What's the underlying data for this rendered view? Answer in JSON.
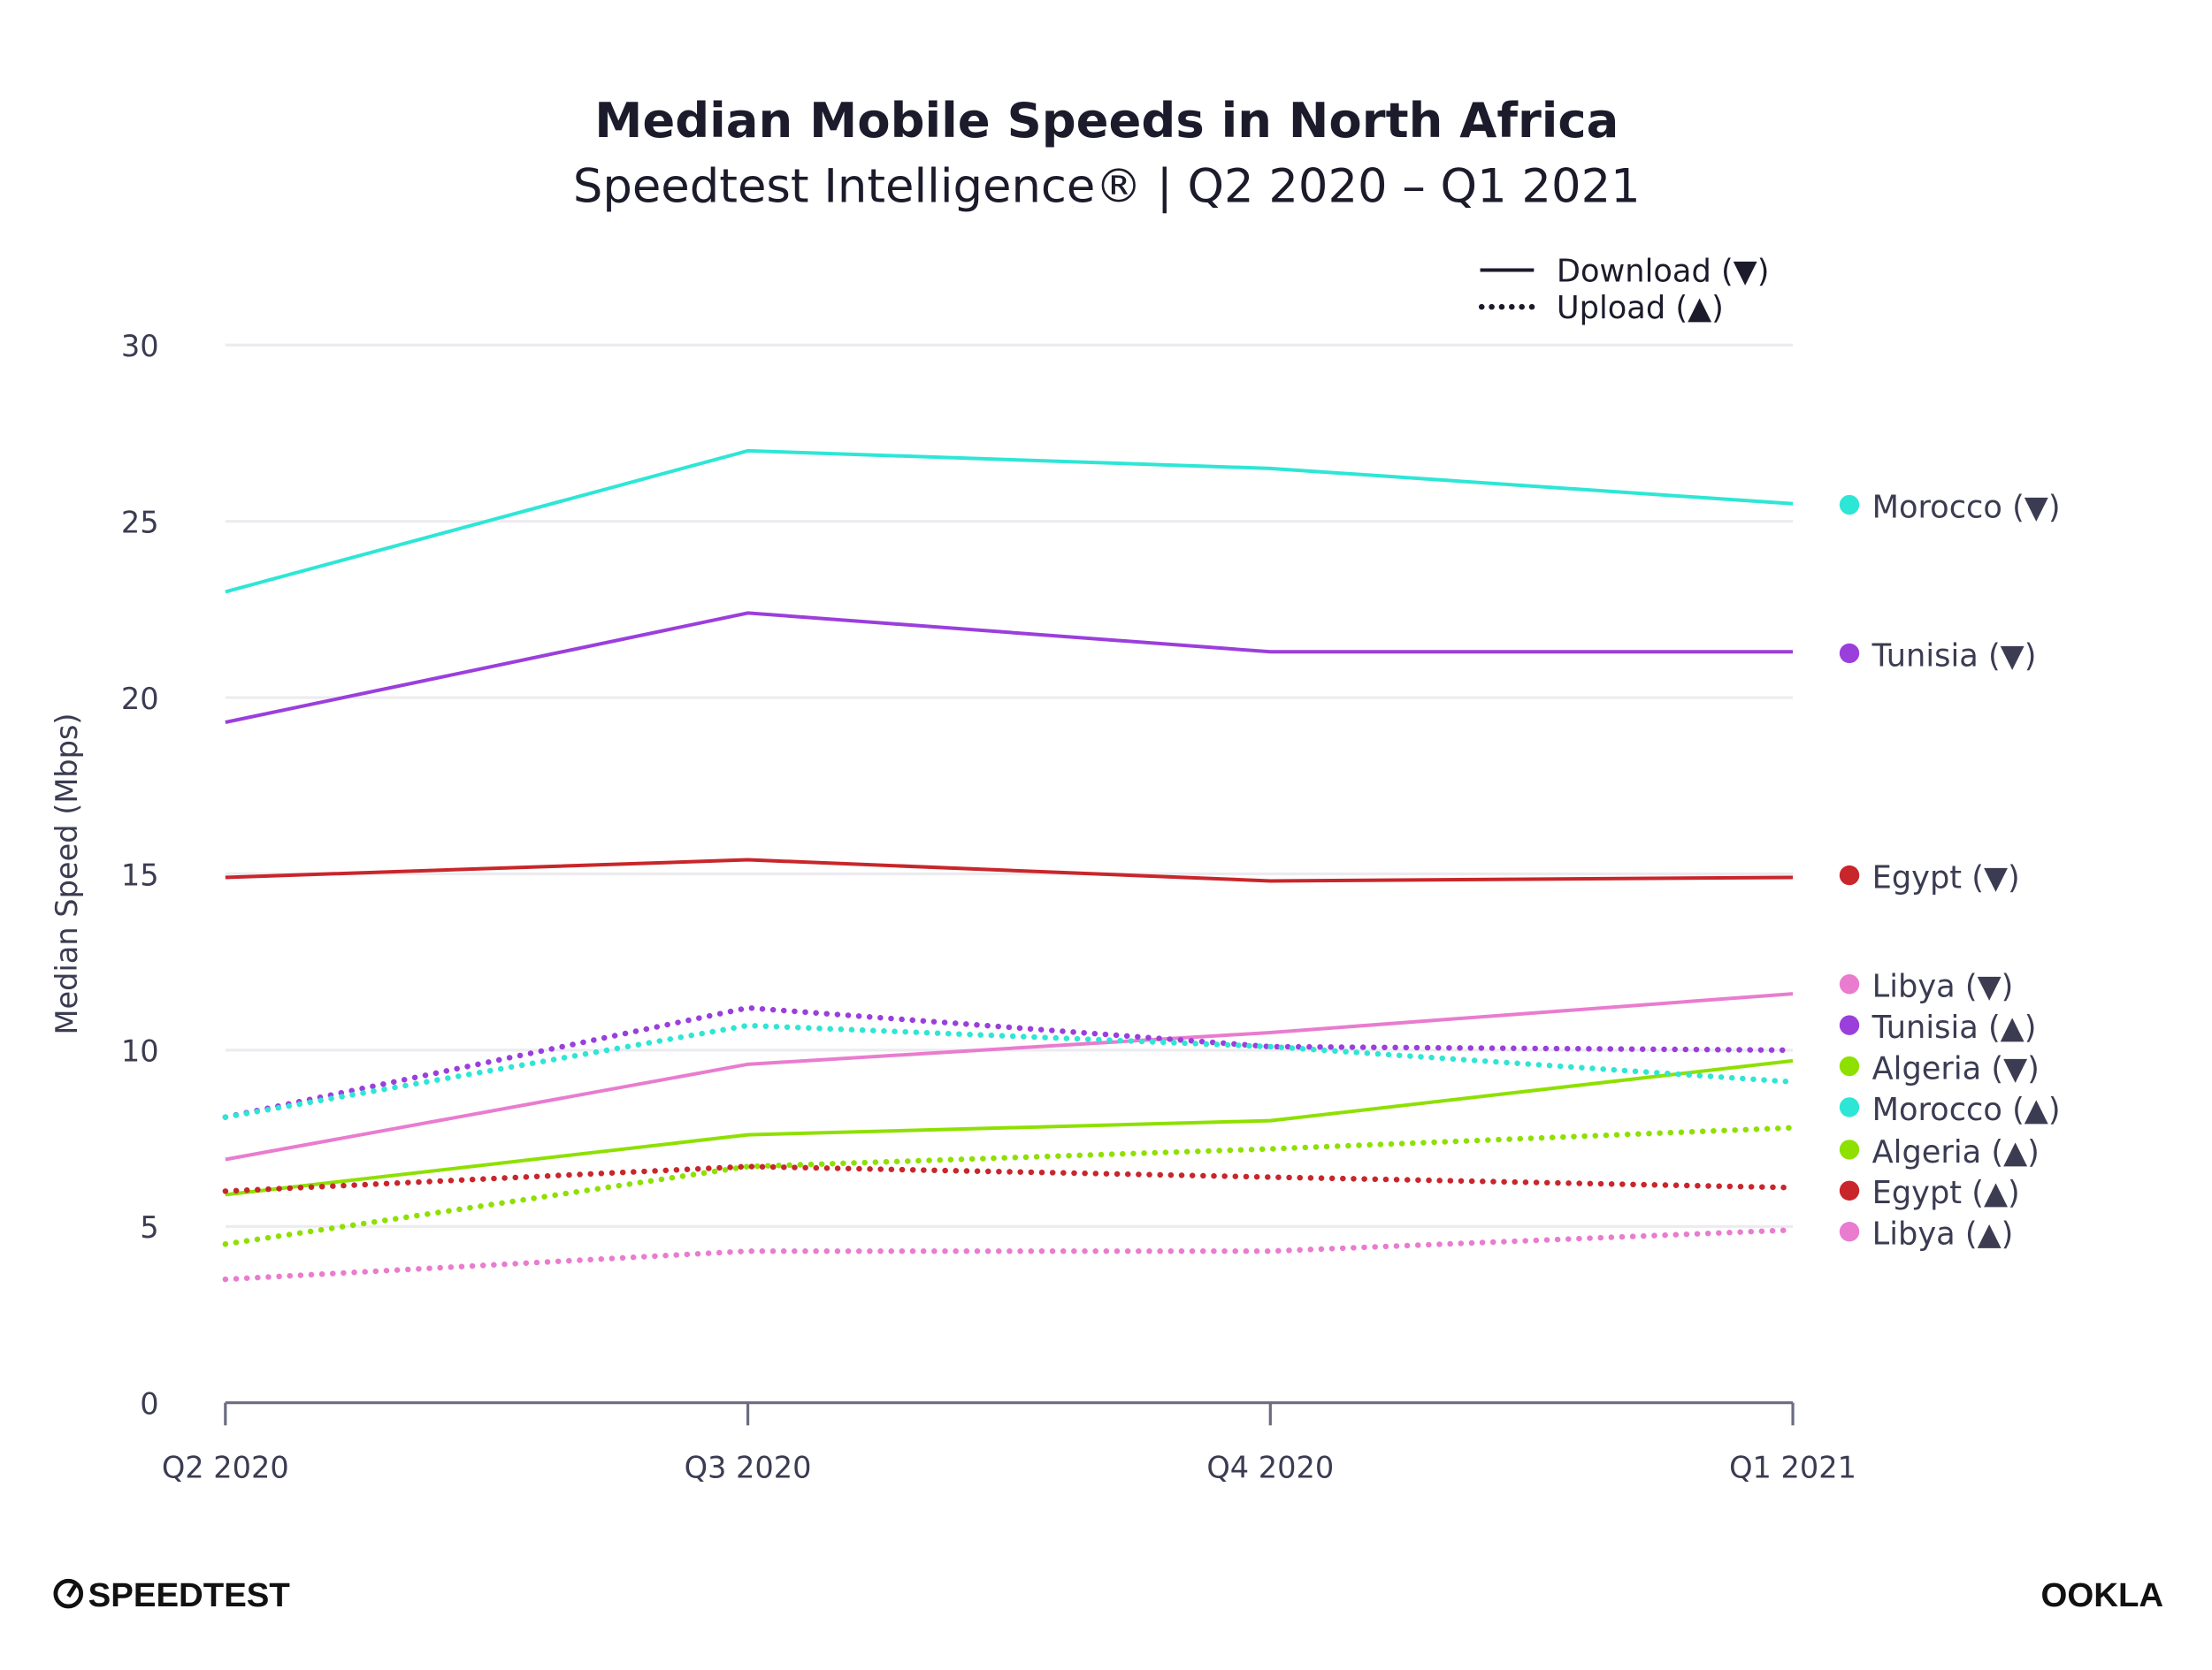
{
  "chart_data": {
    "type": "line",
    "title": "Median Mobile Speeds in North Africa",
    "subtitle": "Speedtest Intelligence® | Q2 2020 – Q1 2021",
    "ylabel": "Median Speed (Mbps)",
    "xlabel": "",
    "categories": [
      "Q2 2020",
      "Q3 2020",
      "Q4 2020",
      "Q1 2021"
    ],
    "ylim": [
      0,
      30
    ],
    "yticks": [
      0,
      5,
      10,
      15,
      20,
      25,
      30
    ],
    "grid": true,
    "legend": {
      "placement": "top-right",
      "items": [
        {
          "label": "Download (▼)",
          "style": "solid"
        },
        {
          "label": "Upload (▲)",
          "style": "dotted"
        }
      ]
    },
    "series": [
      {
        "name": "Morocco (▼)",
        "style": "solid",
        "color": "#2ee6d6",
        "values": [
          23.0,
          27.0,
          26.5,
          25.5
        ]
      },
      {
        "name": "Tunisia (▼)",
        "style": "solid",
        "color": "#9b3fdc",
        "values": [
          19.3,
          22.4,
          21.3,
          21.3
        ]
      },
      {
        "name": "Egypt (▼)",
        "style": "solid",
        "color": "#c8262b",
        "values": [
          14.9,
          15.4,
          14.8,
          14.9
        ]
      },
      {
        "name": "Libya (▼)",
        "style": "solid",
        "color": "#e97ccf",
        "values": [
          6.9,
          9.6,
          10.5,
          11.6
        ]
      },
      {
        "name": "Tunisia (▲)",
        "style": "dotted",
        "color": "#9b3fdc",
        "values": [
          8.1,
          11.2,
          10.1,
          10.0
        ]
      },
      {
        "name": "Algeria (▼)",
        "style": "solid",
        "color": "#8ee000",
        "values": [
          5.9,
          7.6,
          8.0,
          9.7
        ]
      },
      {
        "name": "Morocco (▲)",
        "style": "dotted",
        "color": "#2ee6d6",
        "values": [
          8.1,
          10.7,
          10.1,
          9.1
        ]
      },
      {
        "name": "Algeria (▲)",
        "style": "dotted",
        "color": "#8ee000",
        "values": [
          4.5,
          6.7,
          7.2,
          7.8
        ]
      },
      {
        "name": "Egypt (▲)",
        "style": "dotted",
        "color": "#c8262b",
        "values": [
          6.0,
          6.7,
          6.4,
          6.1
        ]
      },
      {
        "name": "Libya (▲)",
        "style": "dotted",
        "color": "#e97ccf",
        "values": [
          3.5,
          4.3,
          4.3,
          4.9
        ]
      }
    ]
  },
  "footer": {
    "left_logo": "SPEEDTEST",
    "right_logo": "OOKLA"
  }
}
